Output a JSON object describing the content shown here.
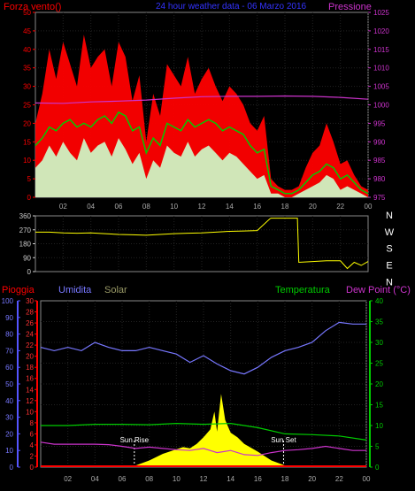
{
  "header": {
    "left_label": "Forza vento()",
    "center_label": "24 hour weather data - 06 Marzo 2016",
    "right_label": "Pressione"
  },
  "chart_data": [
    {
      "type": "line",
      "id": "wind-pressure",
      "ylabel_left": "Forza vento()",
      "ylabel_right": "Pressione",
      "ylim_left": [
        0,
        50
      ],
      "ylim_right": [
        975,
        1025
      ],
      "left_ticks": [
        "0",
        "5",
        "10",
        "15",
        "20",
        "25",
        "30",
        "35",
        "40",
        "45",
        "50"
      ],
      "right_ticks": [
        "975",
        "980",
        "985",
        "990",
        "995",
        "1000",
        "1005",
        "1010",
        "1015",
        "1020",
        "1025"
      ],
      "x_ticks": [
        "02",
        "04",
        "06",
        "08",
        "10",
        "12",
        "14",
        "16",
        "18",
        "20",
        "22",
        "00"
      ],
      "xlim": [
        0,
        24
      ],
      "series": [
        {
          "key": "gust",
          "color": "#ff0000",
          "x": [
            0,
            0.5,
            1,
            1.5,
            2,
            2.5,
            3,
            3.5,
            4,
            4.5,
            5,
            5.5,
            6,
            6.5,
            7,
            7.5,
            8,
            8.5,
            9,
            9.5,
            10,
            10.5,
            11,
            11.5,
            12,
            12.5,
            13,
            13.5,
            14,
            14.5,
            15,
            15.5,
            16,
            16.5,
            17,
            17.5,
            18,
            18.5,
            19,
            19.5,
            20,
            20.5,
            21,
            21.5,
            22,
            22.5,
            23,
            23.5,
            24
          ],
          "values": [
            20,
            28,
            40,
            32,
            42,
            36,
            30,
            44,
            35,
            38,
            40,
            30,
            42,
            38,
            26,
            33,
            15,
            28,
            22,
            36,
            33,
            30,
            38,
            28,
            32,
            35,
            30,
            26,
            30,
            28,
            25,
            20,
            18,
            22,
            5,
            3,
            2,
            2,
            3,
            8,
            12,
            14,
            20,
            15,
            9,
            10,
            6,
            3,
            2
          ]
        },
        {
          "key": "average",
          "color": "#00cc00",
          "x": [
            0,
            0.5,
            1,
            1.5,
            2,
            2.5,
            3,
            3.5,
            4,
            4.5,
            5,
            5.5,
            6,
            6.5,
            7,
            7.5,
            8,
            8.5,
            9,
            9.5,
            10,
            10.5,
            11,
            11.5,
            12,
            12.5,
            13,
            13.5,
            14,
            14.5,
            15,
            15.5,
            16,
            16.5,
            17,
            17.5,
            18,
            18.5,
            19,
            19.5,
            20,
            20.5,
            21,
            21.5,
            22,
            22.5,
            23,
            23.5,
            24
          ],
          "values": [
            14,
            16,
            19,
            18,
            20,
            21,
            19,
            20,
            19,
            21,
            22,
            20,
            23,
            22,
            18,
            19,
            12,
            16,
            14,
            20,
            19,
            18,
            21,
            19,
            20,
            21,
            20,
            18,
            19,
            18,
            17,
            14,
            12,
            13,
            3,
            2,
            1,
            1,
            2,
            4,
            6,
            7,
            9,
            8,
            5,
            6,
            4,
            2,
            1
          ]
        },
        {
          "key": "speed",
          "color": "#ccffcc",
          "x": [
            0,
            0.5,
            1,
            1.5,
            2,
            2.5,
            3,
            3.5,
            4,
            4.5,
            5,
            5.5,
            6,
            6.5,
            7,
            7.5,
            8,
            8.5,
            9,
            9.5,
            10,
            10.5,
            11,
            11.5,
            12,
            12.5,
            13,
            13.5,
            14,
            14.5,
            15,
            15.5,
            16,
            16.5,
            17,
            17.5,
            18,
            18.5,
            19,
            19.5,
            20,
            20.5,
            21,
            21.5,
            22,
            22.5,
            23,
            23.5,
            24
          ],
          "values": [
            8,
            10,
            14,
            11,
            15,
            12,
            10,
            16,
            12,
            14,
            15,
            11,
            16,
            13,
            9,
            12,
            5,
            10,
            8,
            14,
            12,
            11,
            15,
            11,
            13,
            14,
            12,
            10,
            12,
            11,
            9,
            7,
            5,
            6,
            1,
            1,
            0,
            0,
            1,
            2,
            3,
            4,
            6,
            5,
            2,
            3,
            2,
            1,
            0
          ]
        },
        {
          "key": "pressure",
          "color": "#cc33cc",
          "axis": "right",
          "x": [
            0,
            2,
            4,
            6,
            8,
            10,
            12,
            14,
            16,
            18,
            20,
            22,
            24
          ],
          "values": [
            1000.5,
            1000.4,
            1000.8,
            1001,
            1001.3,
            1001.8,
            1002.2,
            1002.3,
            1002.3,
            1002.4,
            1002.3,
            1002,
            1001.5
          ]
        }
      ]
    },
    {
      "type": "line",
      "id": "wind-direction",
      "ylim": [
        0,
        360
      ],
      "left_ticks": [
        "0",
        "90",
        "180",
        "270",
        "360"
      ],
      "right_ticks": [
        "N",
        "E",
        "S",
        "W",
        "N"
      ],
      "x_ticks": [],
      "xlim": [
        0,
        24
      ],
      "series": [
        {
          "key": "direction",
          "color": "#ffff00",
          "x": [
            0,
            1,
            2,
            3,
            4,
            5,
            6,
            7,
            8,
            9,
            10,
            11,
            12,
            13,
            14,
            15,
            16,
            16.9,
            17,
            18,
            18.9,
            19,
            20,
            21,
            22,
            22.5,
            23,
            23.5,
            24
          ],
          "values": [
            255,
            255,
            250,
            248,
            250,
            245,
            240,
            238,
            235,
            240,
            245,
            248,
            250,
            255,
            260,
            262,
            265,
            340,
            345,
            345,
            345,
            60,
            65,
            70,
            70,
            20,
            60,
            40,
            65
          ]
        }
      ]
    },
    {
      "type": "line",
      "id": "rain-humidity-temperature",
      "labels": {
        "rain": "Pioggia",
        "humidity": "Umidita",
        "solar": "Solar",
        "temperature": "Temperatura",
        "dew_point": "Dew Point (°C)"
      },
      "ylim_humidity": [
        0,
        100
      ],
      "ylim_rain": [
        0,
        30
      ],
      "ylim_temp": [
        0,
        40
      ],
      "humidity_ticks": [
        "0",
        "10",
        "20",
        "30",
        "40",
        "50",
        "60",
        "70",
        "80",
        "90",
        "100"
      ],
      "rain_ticks": [
        "0",
        "2",
        "4",
        "6",
        "8",
        "10",
        "12",
        "14",
        "16",
        "18",
        "20",
        "22",
        "24",
        "26",
        "28",
        "30"
      ],
      "temp_ticks": [
        "0",
        "5",
        "10",
        "15",
        "20",
        "25",
        "30",
        "35",
        "40"
      ],
      "x_ticks": [
        "02",
        "04",
        "06",
        "08",
        "10",
        "12",
        "14",
        "16",
        "18",
        "20",
        "22",
        "00"
      ],
      "xlim": [
        0,
        24
      ],
      "annotations": {
        "sunrise": "Sun Rise",
        "sunset": "Sun Set",
        "sunrise_x": 6.9,
        "sunset_x": 17.9
      },
      "series": [
        {
          "key": "humidity",
          "color": "#7777ff",
          "x": [
            0,
            1,
            2,
            3,
            4,
            5,
            6,
            7,
            8,
            9,
            10,
            11,
            12,
            13,
            14,
            15,
            16,
            17,
            18,
            19,
            20,
            21,
            22,
            23,
            24
          ],
          "values": [
            72,
            70,
            72,
            70,
            75,
            72,
            70,
            70,
            72,
            70,
            68,
            63,
            67,
            62,
            58,
            56,
            60,
            66,
            70,
            72,
            75,
            82,
            87,
            86,
            86
          ]
        },
        {
          "key": "temperature",
          "color": "#00cc00",
          "x": [
            0,
            2,
            4,
            6,
            8,
            10,
            12,
            14,
            16,
            18,
            20,
            22,
            24
          ],
          "values": [
            10,
            10,
            10.3,
            10.3,
            10.2,
            10.5,
            10.3,
            10.5,
            9.5,
            8,
            7.8,
            7.5,
            6.5
          ]
        },
        {
          "key": "dew_point",
          "color": "#cc33cc",
          "x": [
            0,
            1,
            2,
            3,
            4,
            5,
            6,
            7,
            8,
            9,
            10,
            11,
            12,
            13,
            14,
            15,
            16,
            17,
            18,
            19,
            20,
            21,
            22,
            23,
            24
          ],
          "values": [
            6,
            5.5,
            5.5,
            5.5,
            5.5,
            5.4,
            5,
            4.5,
            4.8,
            4.5,
            4.2,
            4,
            4.5,
            3.5,
            4,
            3,
            2.8,
            3.5,
            4,
            4.2,
            4.5,
            5,
            4.5,
            4,
            4
          ]
        },
        {
          "key": "solar",
          "color": "#ffff00",
          "axis": "rain",
          "x": [
            7,
            8,
            9,
            10,
            10.5,
            11,
            11.5,
            12,
            12.5,
            12.8,
            13,
            13.3,
            13.6,
            14,
            14.5,
            15,
            16,
            17,
            18
          ],
          "values": [
            0.3,
            1.2,
            2.4,
            3.2,
            3.6,
            3.4,
            4.2,
            5.4,
            6.8,
            10,
            6.4,
            13.2,
            8.5,
            6.2,
            5.4,
            4.2,
            2.8,
            1.2,
            0.3
          ]
        }
      ]
    }
  ]
}
